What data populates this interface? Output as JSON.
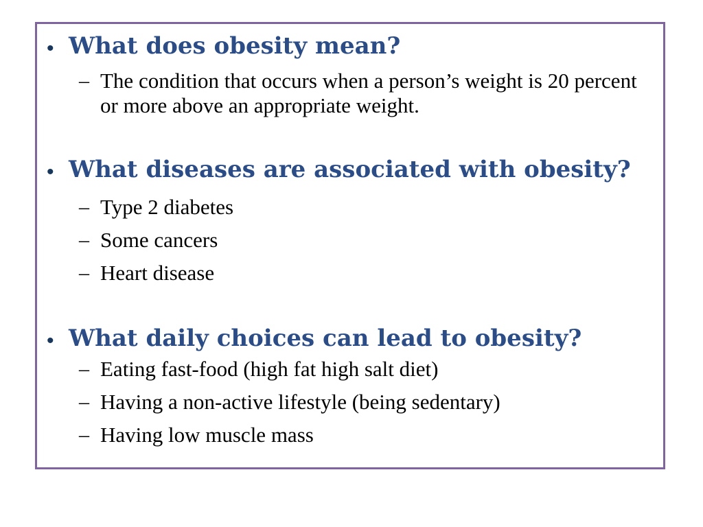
{
  "slide": {
    "border_color": "#8064a2",
    "heading_color": "#2a4d8a",
    "body_color": "#000000",
    "bullet_symbol": "•",
    "sub_bullet_symbol": "–",
    "topics": [
      {
        "question": "What does obesity mean?",
        "points": [
          "The condition that occurs when a person’s weight is 20 percent or more above an appropriate weight."
        ]
      },
      {
        "question": "What diseases are associated with obesity?",
        "points": [
          "Type 2 diabetes",
          "Some cancers",
          "Heart disease"
        ]
      },
      {
        "question": "What daily choices can lead to obesity?",
        "points": [
          "Eating fast-food (high fat high salt diet)",
          "Having a non-active lifestyle (being sedentary)",
          "Having low muscle mass"
        ]
      }
    ]
  }
}
